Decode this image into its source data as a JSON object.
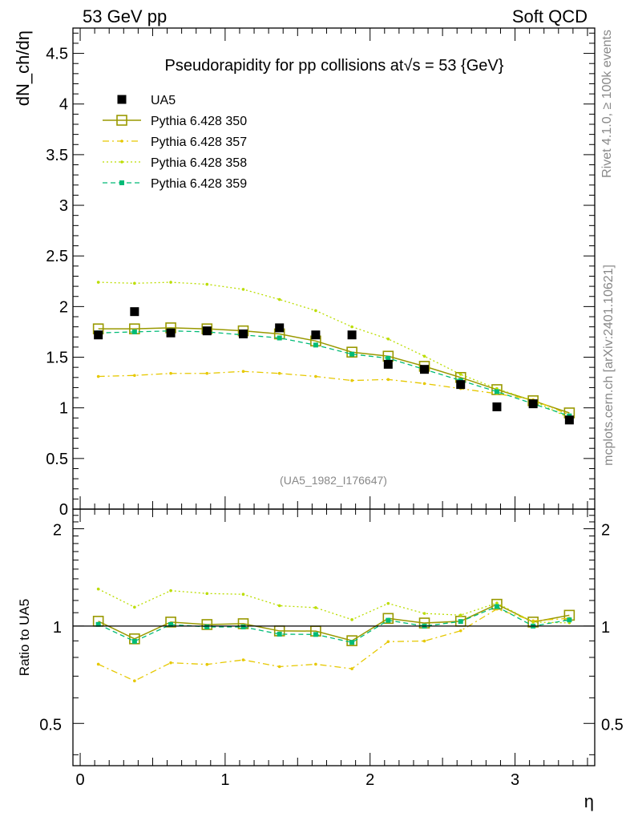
{
  "header": {
    "left": "53 GeV pp",
    "right": "Soft QCD"
  },
  "side_text": {
    "rivet": "Rivet 4.1.0, ≥ 100k events",
    "mcplots": "mcplots.cern.ch [arXiv:2401.10621]"
  },
  "watermark": "(UA5_1982_I176647)",
  "chart_data": [
    {
      "type": "scatter",
      "panel": "main",
      "title": "Pseudorapidity for pp collisions at√s = 53 {GeV}",
      "xlabel": "η",
      "ylabel": "dN_ch/dη",
      "xlim": [
        -0.05,
        3.55
      ],
      "ylim": [
        0,
        4.75
      ],
      "yticks": [
        0,
        0.5,
        1,
        1.5,
        2,
        2.5,
        3,
        3.5,
        4,
        4.5
      ],
      "ytick_labels": [
        "0",
        "0.5",
        "1",
        "1.5",
        "2",
        "2.5",
        "3",
        "3.5",
        "4",
        "4.5"
      ],
      "x": [
        0.125,
        0.375,
        0.625,
        0.875,
        1.125,
        1.375,
        1.625,
        1.875,
        2.125,
        2.375,
        2.625,
        2.875,
        3.125,
        3.375
      ],
      "series": [
        {
          "name": "UA5",
          "style": "data",
          "color": "#000000",
          "values": [
            1.72,
            1.95,
            1.74,
            1.76,
            1.73,
            1.79,
            1.72,
            1.72,
            1.43,
            1.38,
            1.23,
            1.01,
            1.04,
            0.88
          ]
        },
        {
          "name": "Pythia 6.428 350",
          "style": "solid-open-square",
          "color": "#999900",
          "values": [
            1.78,
            1.78,
            1.79,
            1.78,
            1.76,
            1.73,
            1.66,
            1.55,
            1.51,
            1.41,
            1.3,
            1.18,
            1.07,
            0.95
          ]
        },
        {
          "name": "Pythia 6.428 357",
          "style": "dashdot",
          "color": "#e6c800",
          "values": [
            1.31,
            1.32,
            1.34,
            1.34,
            1.36,
            1.34,
            1.31,
            1.27,
            1.28,
            1.24,
            1.19,
            1.14,
            1.08,
            0.93
          ]
        },
        {
          "name": "Pythia 6.428 358",
          "style": "dotted",
          "color": "#bbdd00",
          "values": [
            2.24,
            2.23,
            2.24,
            2.22,
            2.17,
            2.07,
            1.96,
            1.8,
            1.68,
            1.51,
            1.33,
            1.19,
            1.07,
            0.9
          ]
        },
        {
          "name": "Pythia 6.428 359",
          "style": "dashed",
          "color": "#00bb77",
          "values": [
            1.74,
            1.75,
            1.76,
            1.75,
            1.72,
            1.69,
            1.62,
            1.53,
            1.49,
            1.38,
            1.27,
            1.16,
            1.04,
            0.92
          ]
        }
      ]
    },
    {
      "type": "line",
      "panel": "ratio",
      "ylabel": "Ratio to UA5",
      "xlabel": "η",
      "xlim": [
        -0.05,
        3.55
      ],
      "ylim": [
        0.37,
        2.3
      ],
      "yticks": [
        0.5,
        1,
        2
      ],
      "ytick_labels": [
        "0.5",
        "1",
        "2"
      ],
      "xticks": [
        0,
        1,
        2,
        3
      ],
      "xtick_labels": [
        "0",
        "1",
        "2",
        "3"
      ],
      "x": [
        0.125,
        0.375,
        0.625,
        0.875,
        1.125,
        1.375,
        1.625,
        1.875,
        2.125,
        2.375,
        2.625,
        2.875,
        3.125,
        3.375
      ],
      "series": [
        {
          "name": "Pythia 6.428 350",
          "color": "#999900",
          "values": [
            1.035,
            0.913,
            1.029,
            1.011,
            1.017,
            0.966,
            0.965,
            0.901,
            1.056,
            1.022,
            1.035,
            1.168,
            1.029,
            1.08
          ]
        },
        {
          "name": "Pythia 6.428 357",
          "color": "#e6c800",
          "values": [
            0.762,
            0.677,
            0.77,
            0.761,
            0.786,
            0.749,
            0.762,
            0.738,
            0.895,
            0.899,
            0.967,
            1.129,
            1.038,
            1.057
          ]
        },
        {
          "name": "Pythia 6.428 358",
          "color": "#bbdd00",
          "values": [
            1.302,
            1.144,
            1.287,
            1.261,
            1.254,
            1.156,
            1.14,
            1.047,
            1.175,
            1.094,
            1.081,
            1.178,
            1.029,
            1.023
          ]
        },
        {
          "name": "Pythia 6.428 359",
          "color": "#00bb77",
          "values": [
            1.012,
            0.897,
            1.011,
            0.994,
            0.994,
            0.944,
            0.942,
            0.89,
            1.042,
            1.0,
            1.033,
            1.149,
            1.0,
            1.045
          ]
        }
      ]
    }
  ]
}
